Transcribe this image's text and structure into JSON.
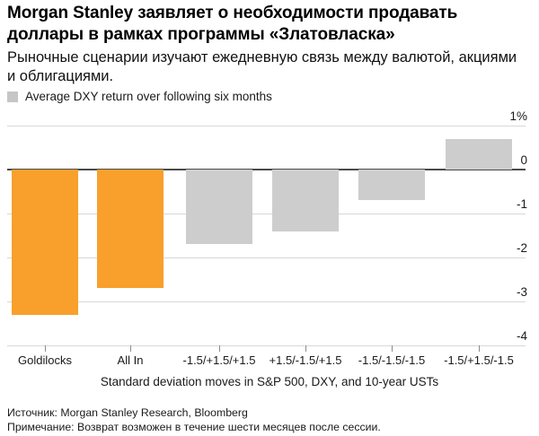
{
  "chart_data": {
    "type": "bar",
    "title": "Morgan Stanley заявляет о необходимости продавать\nдоллары в рамках программы «Златовласка»",
    "subtitle": "Рыночные сценарии изучают ежедневную связь между валютой, акциями\nи облигациями.",
    "legend": [
      {
        "label": "Average DXY return over following six months",
        "color": "#c6c6c6"
      }
    ],
    "legend_position": "top-left",
    "categories": [
      "Goldilocks",
      "All In",
      "-1.5/+1.5/+1.5",
      "+1.5/-1.5/+1.5",
      "-1.5/-1.5/-1.5",
      "-1.5/+1.5/-1.5"
    ],
    "values": [
      -3.3,
      -2.7,
      -1.7,
      -1.4,
      -0.7,
      0.7
    ],
    "bar_colors": [
      "#F8A02B",
      "#F8A02B",
      "#CDCDCD",
      "#CDCDCD",
      "#CDCDCD",
      "#CDCDCD"
    ],
    "xlabel": "Standard deviation moves in S&P 500, DXY, and 10-year USTs",
    "ylabel": "",
    "ylim": [
      -4,
      1
    ],
    "ytick_values": [
      1,
      0,
      -1,
      -2,
      -3,
      -4
    ],
    "ytick_labels": [
      "1%",
      "0",
      "-1",
      "-2",
      "-3",
      "-4"
    ],
    "grid": "horizontal"
  },
  "colors": {
    "accent_orange": "#F8A02B",
    "bar_gray": "#CDCDCD",
    "gridline": "#d8d8d8",
    "zero_line": "#4a4a4a",
    "axis_tick": "#8c8c8c"
  },
  "footer": {
    "source": "Источник: Morgan Stanley Research, Bloomberg",
    "note": "Примечание: Возврат возможен в течение шести месяцев после сессии."
  }
}
